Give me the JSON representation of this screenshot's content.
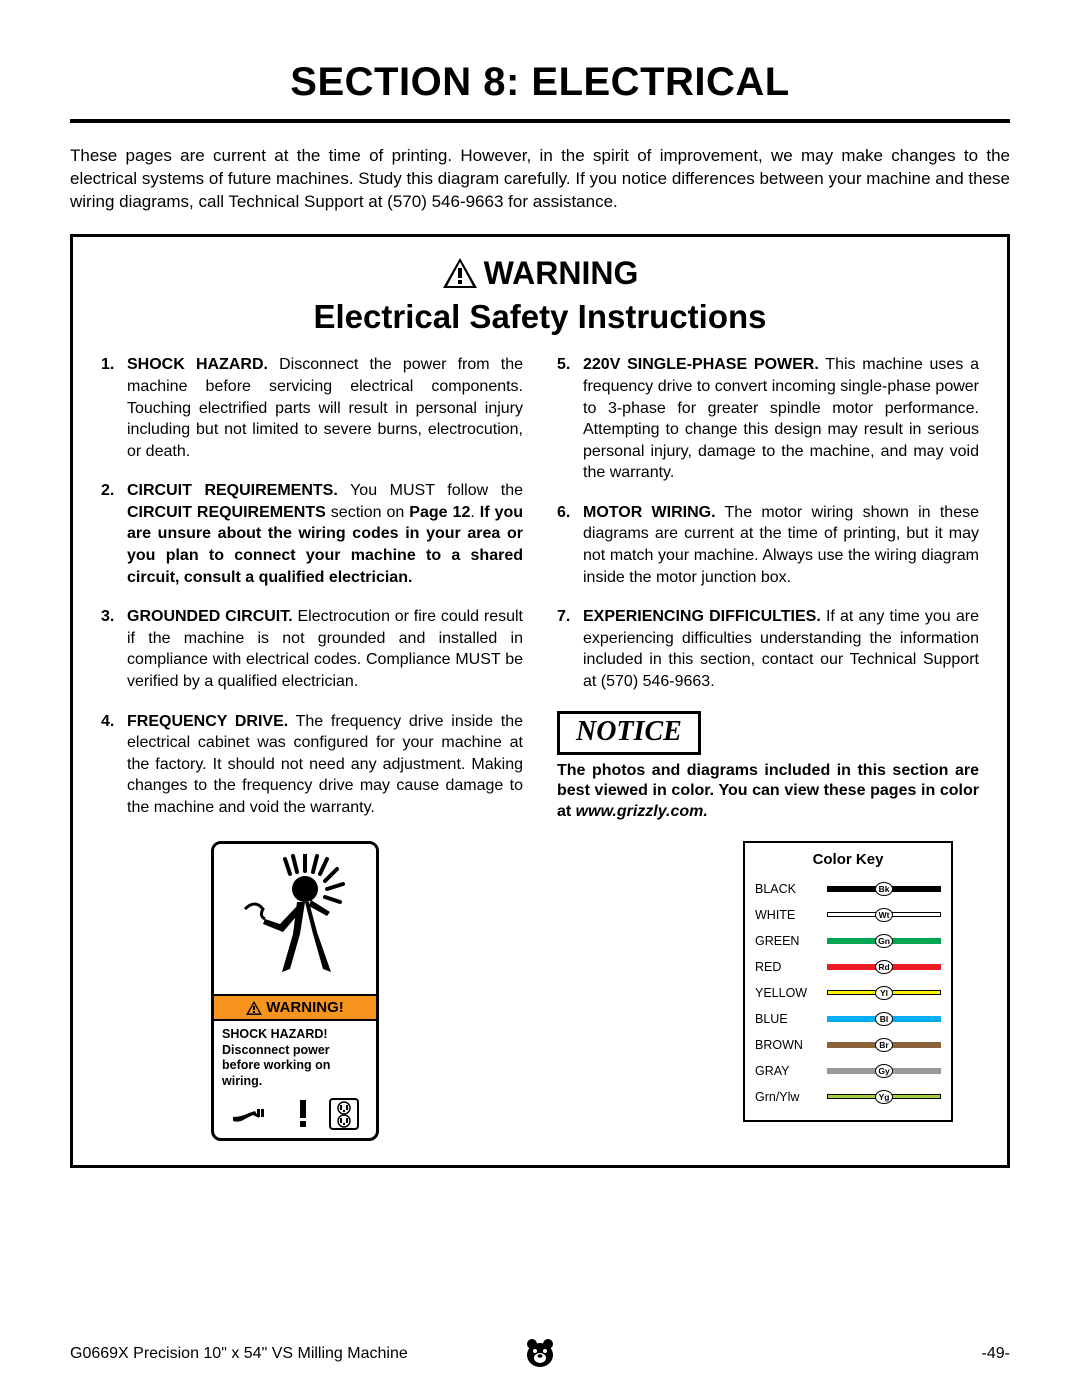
{
  "section_title": "SECTION 8: ELECTRICAL",
  "intro": "These pages are current at the time of printing. However, in the spirit of improvement, we may make changes to the electrical systems of future machines. Study this diagram carefully. If you notice differences between your machine and these wiring diagrams, call Technical Support at (570) 546-9663 for assistance.",
  "warning_label": "WARNING",
  "warning_subtitle": "Electrical Safety Instructions",
  "instr": {
    "i1": {
      "num": "1.",
      "lead": "SHOCK HAZARD.",
      "body": " Disconnect the power from the machine before servicing electrical components. Touching electrified parts will result in personal injury including but not limited to severe burns, electrocution, or death."
    },
    "i2": {
      "num": "2.",
      "lead": "CIRCUIT REQUIREMENTS.",
      "body_a": " You MUST follow the ",
      "body_b": "CIRCUIT REQUIREMENTS",
      "body_c": " section on ",
      "body_d": "Page 12",
      "body_e": ". ",
      "body_f": "If you are unsure about the wiring codes in your area or you plan to connect your machine to a shared circuit, consult a qualified electrician."
    },
    "i3": {
      "num": "3.",
      "lead": "GROUNDED CIRCUIT.",
      "body": " Electrocution or fire could result if the machine is not grounded and installed in compliance with electrical codes. Compliance MUST be verified by a qualified electrician."
    },
    "i4": {
      "num": "4.",
      "lead": "FREQUENCY DRIVE.",
      "body": " The frequency drive inside the electrical cabinet was configured for your machine at the factory. It should not need any adjustment. Making changes to the frequency drive may cause damage to the machine and void the warranty."
    },
    "i5": {
      "num": "5.",
      "lead": "220V SINGLE-PHASE POWER.",
      "body": " This machine uses a frequency drive to convert incoming single-phase power to 3-phase for greater spindle motor performance. Attempting to change this design may result in serious personal injury, damage to the machine, and may void the warranty."
    },
    "i6": {
      "num": "6.",
      "lead": "MOTOR WIRING.",
      "body": " The motor wiring shown in these diagrams are current at the time of printing, but it may not match your machine. Always use the wiring diagram inside the motor junction box."
    },
    "i7": {
      "num": "7.",
      "lead": "EXPERIENCING DIFFICULTIES.",
      "body": " If at any time you are experiencing difficulties understanding the information included in this section, contact our Technical Support at (570) 546-9663."
    }
  },
  "notice_label": "NOTICE",
  "notice_text_a": "The photos and diagrams included in this section are best viewed in color. You can view these pages in color at ",
  "notice_text_b": "www.grizzly.com.",
  "shock": {
    "warning": "WARNING!",
    "title": "SHOCK HAZARD!",
    "line1": "Disconnect power",
    "line2": "before working on",
    "line3": "wiring."
  },
  "color_key": {
    "title": "Color Key",
    "rows": [
      {
        "label": "BLACK",
        "code": "Bk",
        "color": "#000000",
        "outlined": false
      },
      {
        "label": "WHITE",
        "code": "Wt",
        "color": "#ffffff",
        "outlined": true
      },
      {
        "label": "GREEN",
        "code": "Gn",
        "color": "#00a651",
        "outlined": false
      },
      {
        "label": "RED",
        "code": "Rd",
        "color": "#ed1c24",
        "outlined": false
      },
      {
        "label": "YELLOW",
        "code": "Yl",
        "color": "#fff200",
        "outlined": true
      },
      {
        "label": "BLUE",
        "code": "Bl",
        "color": "#00aeef",
        "outlined": false
      },
      {
        "label": "BROWN",
        "code": "Br",
        "color": "#8c6239",
        "outlined": false
      },
      {
        "label": "GRAY",
        "code": "Gy",
        "color": "#999999",
        "outlined": false
      },
      {
        "label": "Grn/Ylw",
        "code": "Yg",
        "color": "#a6ce39",
        "outlined": true
      }
    ]
  },
  "footer": {
    "left": "G0669X Precision 10\" x 54\" VS Milling Machine",
    "right": "-49-"
  }
}
